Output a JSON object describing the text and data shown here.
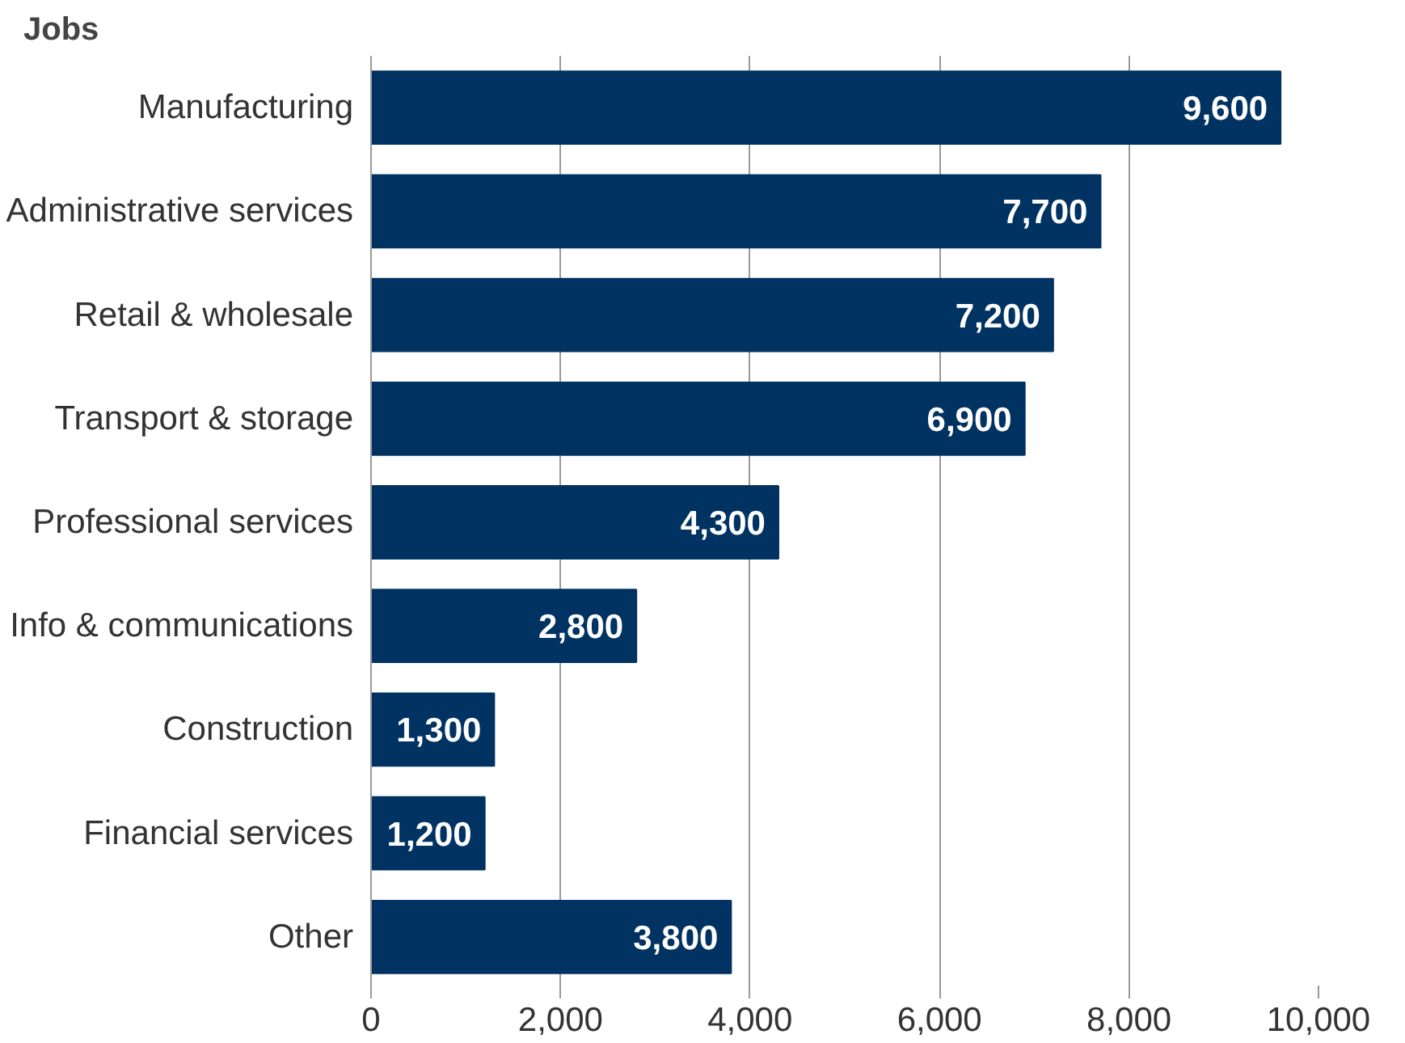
{
  "chart_data": {
    "type": "bar",
    "orientation": "horizontal",
    "title": "Jobs",
    "categories": [
      "Manufacturing",
      "Administrative services",
      "Retail & wholesale",
      "Transport & storage",
      "Professional services",
      "Info & communications",
      "Construction",
      "Financial services",
      "Other"
    ],
    "values": [
      9600,
      7700,
      7200,
      6900,
      4300,
      2800,
      1300,
      1200,
      3800
    ],
    "color": "#003262",
    "xlim": [
      0,
      10000
    ],
    "xticks": [
      {
        "value": 0,
        "label": "0"
      },
      {
        "value": 2000,
        "label": "2,000"
      },
      {
        "value": 4000,
        "label": "4,000"
      },
      {
        "value": 6000,
        "label": "6,000"
      },
      {
        "value": 8000,
        "label": "8,000"
      },
      {
        "value": 10000,
        "label": "10,000"
      }
    ],
    "value_labels": [
      "9,600",
      "7,700",
      "7,200",
      "6,900",
      "4,300",
      "2,800",
      "1,300",
      "1,200",
      "3,800"
    ],
    "grid": "x"
  }
}
